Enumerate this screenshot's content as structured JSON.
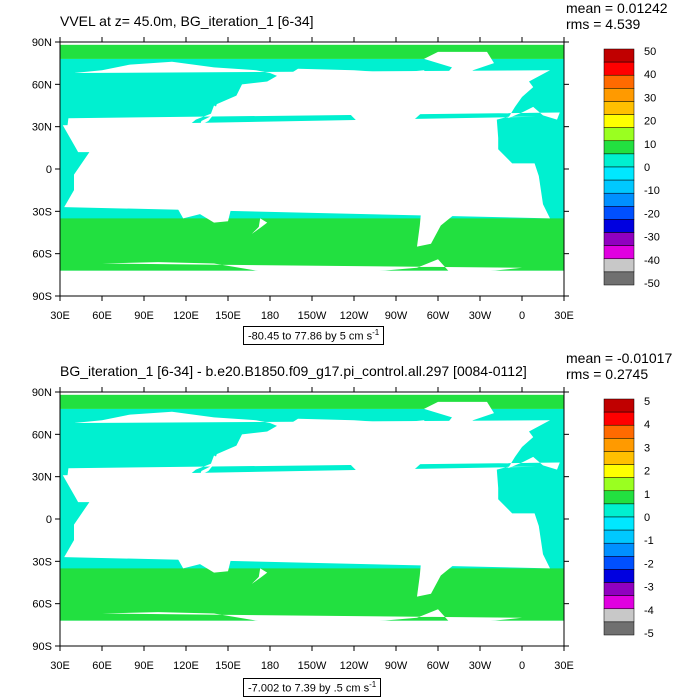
{
  "panels": [
    {
      "title": "VVEL at z=  45.0m, BG_iteration_1 [6-34]",
      "mean": "mean = 0.01242",
      "rms": "rms = 4.539",
      "range": "-80.45 to 77.86 by 5 cm s",
      "range_sup": "-1",
      "colorbar_labels": [
        "50",
        "40",
        "30",
        "20",
        "10",
        "0",
        "-10",
        "-20",
        "-30",
        "-40",
        "-50"
      ]
    },
    {
      "title": "BG_iteration_1 [6-34] - b.e20.B1850.f09_g17.pi_control.all.297 [0084-0112]",
      "mean": "mean = -0.01017",
      "rms": "rms = 0.2745",
      "range": "-7.002 to 7.39 by .5 cm s",
      "range_sup": "-1",
      "colorbar_labels": [
        "5",
        "4",
        "3",
        "2",
        "1",
        "0",
        "-1",
        "-2",
        "-3",
        "-4",
        "-5"
      ]
    }
  ],
  "lat_labels": [
    "90N",
    "60N",
    "30N",
    "0",
    "30S",
    "60S",
    "90S"
  ],
  "lon_labels": [
    "30E",
    "60E",
    "90E",
    "120E",
    "150E",
    "180",
    "150W",
    "120W",
    "90W",
    "60W",
    "30W",
    "0",
    "30E"
  ],
  "colors": {
    "ocean_zero_band": "#00f0d0",
    "ocean_positive_small": "#22e040",
    "land": "#ffffff",
    "colorbar": [
      "#c00000",
      "#ff0000",
      "#ff6a00",
      "#ff9a00",
      "#ffc000",
      "#ffff00",
      "#9aff20",
      "#22e040",
      "#00f0d0",
      "#00e8ff",
      "#00c8ff",
      "#0090ff",
      "#0050ff",
      "#0000e0",
      "#9000c0",
      "#e000e0",
      "#c8c8c8",
      "#707070"
    ]
  }
}
